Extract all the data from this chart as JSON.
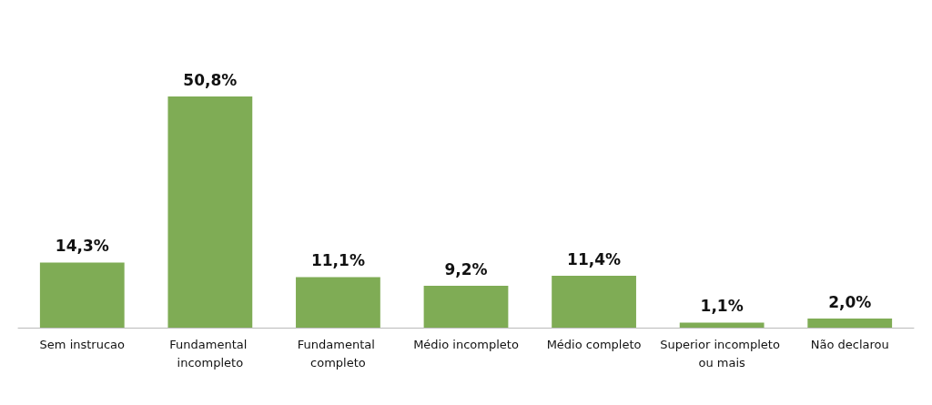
{
  "chart_data": {
    "type": "bar",
    "categories": [
      "Sem instrucao",
      "Fundamental incompleto",
      "Fundamental completo",
      "Médio incompleto",
      "Médio completo",
      "Superior incompleto ou mais",
      "Não declarou"
    ],
    "values": [
      14.3,
      50.8,
      11.1,
      9.2,
      11.4,
      1.1,
      2.0
    ],
    "value_labels": [
      "14,3%",
      "50,8%",
      "11,1%",
      "9,2%",
      "11,4%",
      "1,1%",
      "2,0%"
    ],
    "color": "#7fac55"
  }
}
